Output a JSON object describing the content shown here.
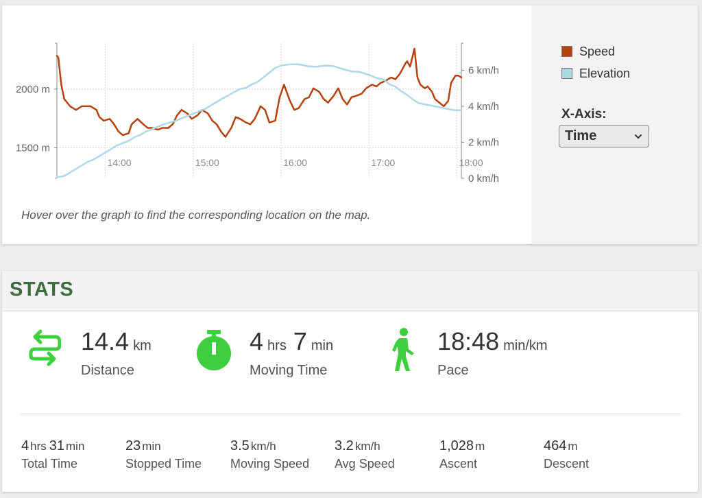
{
  "chart": {
    "hint": "Hover over the graph to find the corresponding location on the map.",
    "legend": {
      "speed_label": "Speed",
      "elevation_label": "Elevation"
    },
    "xaxis_control": {
      "label": "X-Axis:",
      "selected": "Time"
    }
  },
  "chart_data": {
    "type": "line",
    "x_ticks": [
      "14:00",
      "15:00",
      "16:00",
      "17:00",
      "18:00"
    ],
    "y_left_ticks": [
      "1500 m",
      "2000 m"
    ],
    "y_right_ticks": [
      "0 km/h",
      "2 km/h",
      "4 km/h",
      "6 km/h"
    ],
    "y_left_range": [
      1240,
      2390
    ],
    "y_right_range": [
      0,
      7.5
    ],
    "x_range": [
      "13:27",
      "18:03"
    ],
    "grid": true,
    "legend_position": "right",
    "colors": {
      "speed": "#b5410f",
      "elevation": "#add8e6"
    },
    "series": [
      {
        "name": "Speed",
        "axis": "right",
        "x": [
          "13:27",
          "13:28",
          "13:30",
          "13:32",
          "13:36",
          "13:40",
          "13:44",
          "13:46",
          "13:50",
          "13:54",
          "13:56",
          "13:59",
          "14:03",
          "14:06",
          "14:09",
          "14:12",
          "14:16",
          "14:18",
          "14:22",
          "14:26",
          "14:29",
          "14:32",
          "14:36",
          "14:39",
          "14:43",
          "14:46",
          "14:49",
          "14:52",
          "14:56",
          "14:59",
          "15:03",
          "15:06",
          "15:10",
          "15:13",
          "15:16",
          "15:19",
          "15:22",
          "15:26",
          "15:29",
          "15:32",
          "15:36",
          "15:39",
          "15:42",
          "15:46",
          "15:49",
          "15:52",
          "15:56",
          "15:59",
          "16:02",
          "16:06",
          "16:09",
          "16:12",
          "16:16",
          "16:19",
          "16:22",
          "16:26",
          "16:29",
          "16:32",
          "16:36",
          "16:39",
          "16:42",
          "16:45",
          "16:48",
          "16:52",
          "16:55",
          "16:58",
          "17:02",
          "17:05",
          "17:08",
          "17:11",
          "17:15",
          "17:18",
          "17:21",
          "17:25",
          "17:26",
          "17:28",
          "17:31",
          "17:33",
          "17:35",
          "17:38",
          "17:40",
          "17:43",
          "17:45",
          "17:48",
          "17:51",
          "17:54",
          "17:56",
          "17:59",
          "18:01",
          "18:03"
        ],
        "y": [
          6.8,
          6.7,
          5.2,
          4.4,
          4.0,
          3.8,
          4.0,
          4.0,
          4.0,
          3.8,
          3.4,
          3.2,
          3.3,
          3.0,
          2.6,
          2.4,
          2.5,
          3.0,
          3.3,
          3.0,
          2.8,
          2.8,
          2.7,
          2.8,
          2.8,
          3.0,
          3.5,
          3.8,
          3.6,
          3.3,
          3.5,
          3.8,
          3.6,
          3.2,
          3.0,
          2.6,
          2.3,
          2.8,
          3.4,
          3.3,
          3.1,
          3.0,
          3.3,
          4.0,
          3.8,
          3.1,
          3.2,
          4.5,
          5.2,
          4.3,
          3.8,
          3.9,
          4.4,
          4.5,
          5.0,
          4.8,
          4.4,
          4.2,
          4.6,
          5.0,
          4.4,
          4.1,
          4.5,
          4.6,
          4.7,
          5.0,
          5.2,
          5.1,
          5.3,
          5.4,
          5.6,
          5.5,
          5.8,
          6.4,
          6.5,
          6.2,
          7.2,
          5.6,
          5.2,
          5.0,
          5.1,
          4.8,
          4.4,
          4.2,
          4.0,
          4.3,
          5.3,
          5.7,
          5.7,
          5.6
        ]
      },
      {
        "name": "Elevation",
        "axis": "left",
        "x": [
          "13:27",
          "13:32",
          "13:36",
          "13:40",
          "13:44",
          "13:48",
          "13:52",
          "13:56",
          "14:00",
          "14:04",
          "14:08",
          "14:12",
          "14:16",
          "14:20",
          "14:24",
          "14:28",
          "14:32",
          "14:36",
          "14:40",
          "14:44",
          "14:48",
          "14:52",
          "14:56",
          "15:00",
          "15:04",
          "15:08",
          "15:12",
          "15:16",
          "15:20",
          "15:24",
          "15:28",
          "15:32",
          "15:36",
          "15:40",
          "15:44",
          "15:48",
          "15:52",
          "15:56",
          "16:00",
          "16:06",
          "16:12",
          "16:18",
          "16:24",
          "16:30",
          "16:36",
          "16:42",
          "16:48",
          "16:54",
          "17:00",
          "17:06",
          "17:10",
          "17:14",
          "17:18",
          "17:22",
          "17:26",
          "17:30",
          "17:34",
          "17:38",
          "17:42",
          "17:46",
          "17:50",
          "17:54",
          "17:58",
          "18:03"
        ],
        "y": [
          1250,
          1260,
          1290,
          1320,
          1350,
          1380,
          1400,
          1430,
          1460,
          1490,
          1520,
          1540,
          1560,
          1590,
          1610,
          1640,
          1660,
          1680,
          1700,
          1715,
          1730,
          1750,
          1770,
          1790,
          1810,
          1830,
          1860,
          1890,
          1920,
          1945,
          1975,
          2000,
          2010,
          2040,
          2060,
          2100,
          2140,
          2180,
          2200,
          2210,
          2210,
          2195,
          2190,
          2200,
          2195,
          2170,
          2150,
          2145,
          2120,
          2090,
          2080,
          2040,
          2020,
          1980,
          1950,
          1910,
          1880,
          1870,
          1860,
          1850,
          1840,
          1830,
          1820,
          1820
        ]
      }
    ]
  },
  "stats": {
    "title": "STATS",
    "distance": {
      "value": "14.4",
      "unit": "km",
      "label": "Distance"
    },
    "moving_time": {
      "hours": "4",
      "hours_unit": "hrs",
      "minutes": "7",
      "minutes_unit": "min",
      "label": "Moving Time"
    },
    "pace": {
      "value": "18:48",
      "unit": "min/km",
      "label": "Pace"
    },
    "total_time": {
      "hours": "4",
      "hours_unit": "hrs",
      "minutes": "31",
      "minutes_unit": "min",
      "label": "Total Time"
    },
    "stopped_time": {
      "value": "23",
      "unit": "min",
      "label": "Stopped Time"
    },
    "moving_speed": {
      "value": "3.5",
      "unit": "km/h",
      "label": "Moving Speed"
    },
    "avg_speed": {
      "value": "3.2",
      "unit": "km/h",
      "label": "Avg Speed"
    },
    "ascent": {
      "value": "1,028",
      "unit": "m",
      "label": "Ascent"
    },
    "descent": {
      "value": "464",
      "unit": "m",
      "label": "Descent"
    },
    "icon_color": "#3ecf3e"
  }
}
